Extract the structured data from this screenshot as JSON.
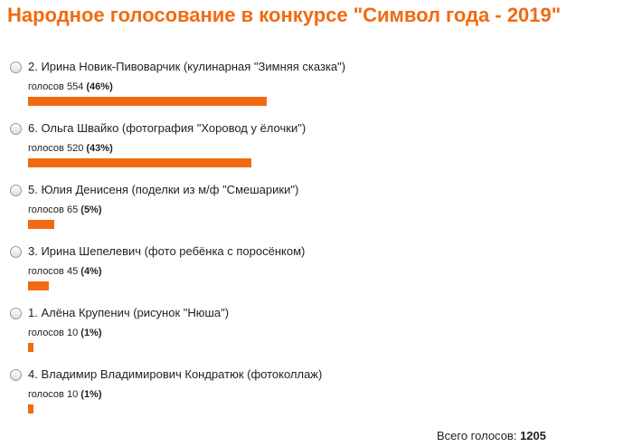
{
  "title": "Народное голосование в конкурсе \"Символ года - 2019\"",
  "options": [
    {
      "label": "2. Ирина Новик-Пивоварчик (кулинарная \"Зимняя сказка\")",
      "votes_text": "голосов",
      "votes": 554,
      "percent": 46,
      "percent_label": "(46%)"
    },
    {
      "label": "6. Ольга Швайко (фотография \"Хоровод у ёлочки\")",
      "votes_text": "голосов",
      "votes": 520,
      "percent": 43,
      "percent_label": "(43%)"
    },
    {
      "label": "5. Юлия Денисеня (поделки из м/ф \"Смешарики\")",
      "votes_text": "голосов",
      "votes": 65,
      "percent": 5,
      "percent_label": "(5%)"
    },
    {
      "label": "3. Ирина Шепелевич (фото ребёнка с поросёнком)",
      "votes_text": "голосов",
      "votes": 45,
      "percent": 4,
      "percent_label": "(4%)"
    },
    {
      "label": "1. Алёна Крупенич (рисунок \"Нюша\")",
      "votes_text": "голосов",
      "votes": 10,
      "percent": 1,
      "percent_label": "(1%)"
    },
    {
      "label": "4. Владимир Владимирович Кондратюк (фотоколлаж)",
      "votes_text": "голосов",
      "votes": 10,
      "percent": 1,
      "percent_label": "(1%)"
    }
  ],
  "total": {
    "label": "Всего голосов:",
    "value": 1205
  },
  "bar_color": "#f26a10"
}
